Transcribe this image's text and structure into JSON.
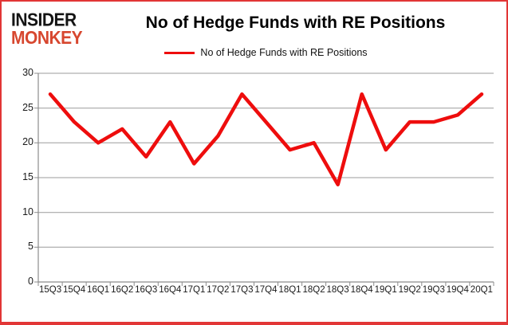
{
  "logo": {
    "line1": "INSIDER",
    "line2": "MONKEY"
  },
  "header": {
    "title": "No of Hedge Funds with RE Positions"
  },
  "legend": {
    "label": "No of Hedge Funds with RE Positions",
    "color": "#ee0d0d"
  },
  "colors": {
    "line": "#ee0d0d",
    "grid": "#9b9b9b",
    "axis": "#8c8c8c",
    "frame_border": "#e23636",
    "logo_black": "#141414",
    "logo_red": "#d7472f"
  },
  "chart_data": {
    "type": "line",
    "title": "No of Hedge Funds with RE Positions",
    "categories": [
      "15Q3",
      "15Q4",
      "16Q1",
      "16Q2",
      "16Q3",
      "16Q4",
      "17Q1",
      "17Q2",
      "17Q3",
      "17Q4",
      "18Q1",
      "18Q2",
      "18Q3",
      "18Q4",
      "19Q1",
      "19Q2",
      "19Q3",
      "19Q4",
      "20Q1"
    ],
    "series": [
      {
        "name": "No of Hedge Funds with RE Positions",
        "color": "#ee0d0d",
        "values": [
          27,
          23,
          20,
          22,
          18,
          23,
          17,
          21,
          27,
          23,
          19,
          20,
          14,
          27,
          19,
          23,
          23,
          24,
          27
        ]
      }
    ],
    "xlabel": "",
    "ylabel": "",
    "ylim": [
      0,
      30
    ],
    "yticks": [
      0,
      5,
      10,
      15,
      20,
      25,
      30
    ],
    "grid": true,
    "legend_position": "top-center"
  }
}
